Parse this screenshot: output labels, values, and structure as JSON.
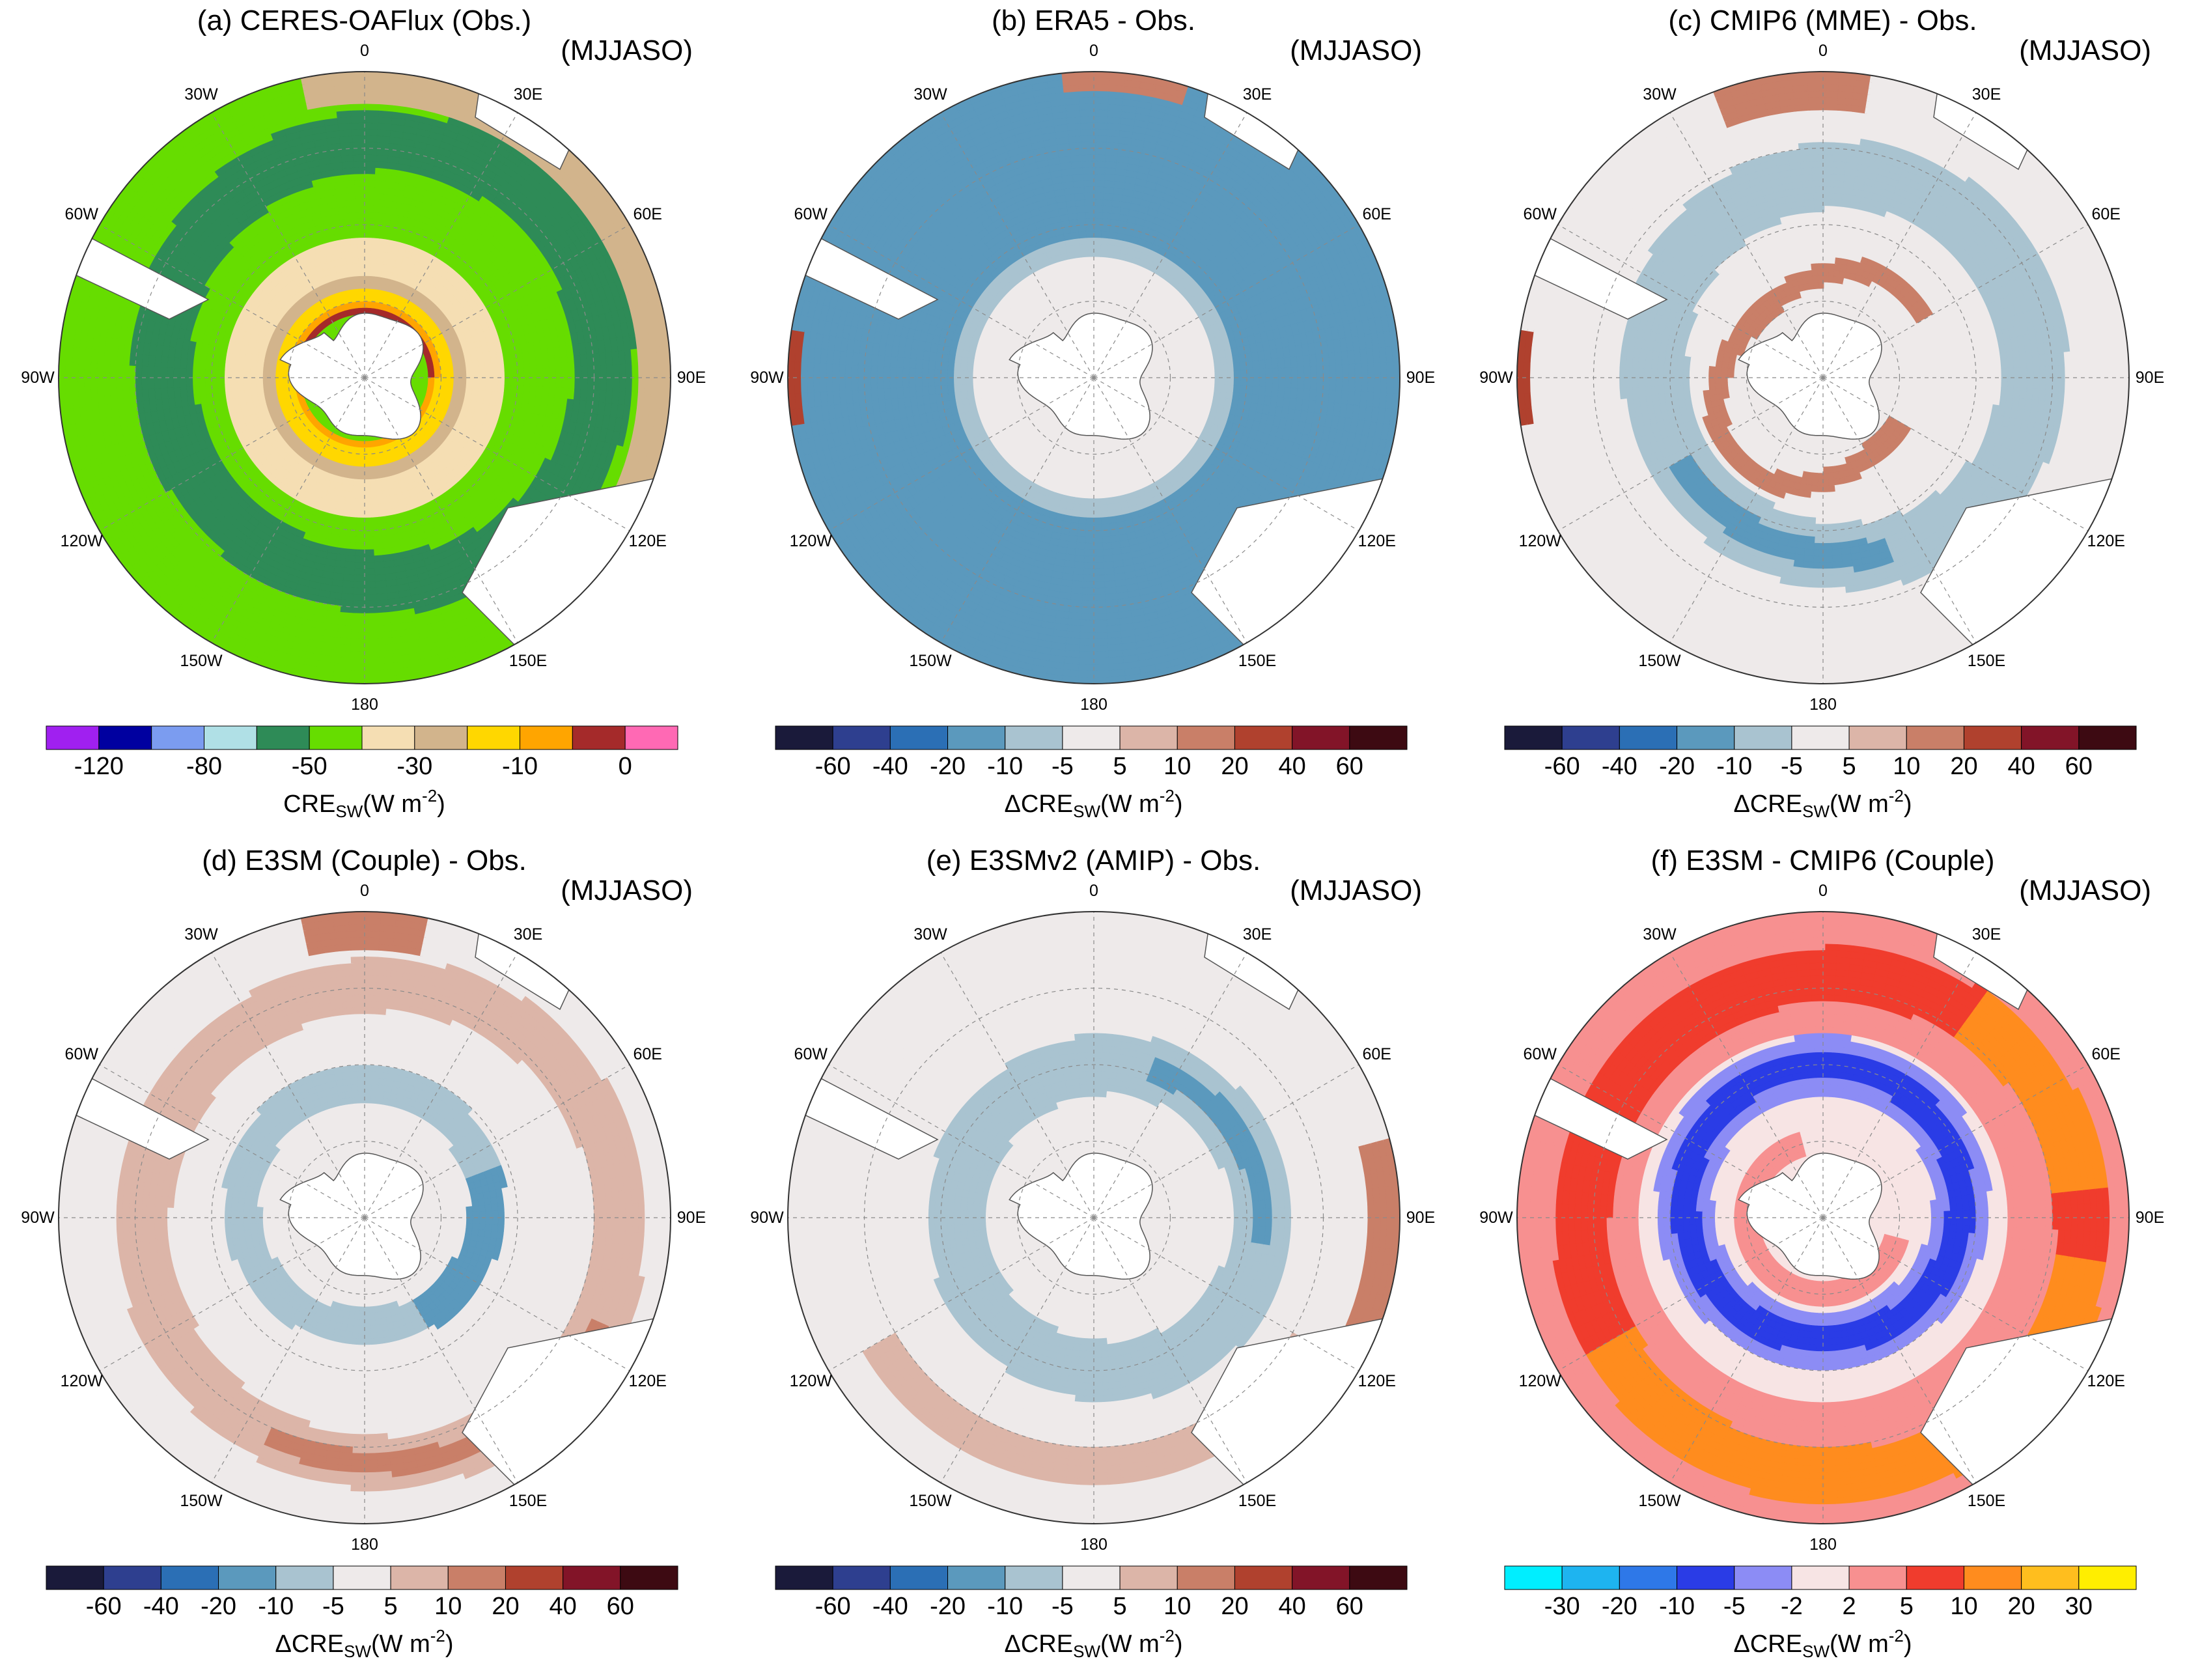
{
  "figure": {
    "season": "(MJJASO)",
    "lon_labels": [
      "0",
      "30E",
      "60E",
      "90E",
      "120E",
      "150E",
      "180",
      "150W",
      "120W",
      "90W",
      "60W",
      "30W"
    ]
  },
  "panels": [
    {
      "title": "(a) CERES-OAFlux (Obs.)",
      "colorbar": {
        "label_main": "CRE",
        "label_sub": "SW",
        "label_units_pre": "(W m",
        "label_units_sup": "-2",
        "label_units_post": ")",
        "ticks": [
          "-120",
          "-80",
          "-50",
          "-30",
          "-10",
          "0"
        ],
        "tick_bounds": [
          1,
          3,
          5,
          7,
          9,
          11
        ],
        "colors": [
          "#a020f0",
          "#0000a0",
          "#7b9cf0",
          "#b0e0e6",
          "#2e8b57",
          "#66dd00",
          "#f5deb3",
          "#d2b48c",
          "#ffd700",
          "#ffa500",
          "#a52a2a",
          "#ff69b4"
        ]
      },
      "field": "abs"
    },
    {
      "title": "(b) ERA5 - Obs.",
      "colorbar": {
        "label_main": "ΔCRE",
        "label_sub": "SW",
        "label_units_pre": "(W m",
        "label_units_sup": "-2",
        "label_units_post": ")",
        "ticks": [
          "-60",
          "-40",
          "-20",
          "-10",
          "-5",
          "5",
          "10",
          "20",
          "40",
          "60"
        ],
        "tick_bounds": [
          1,
          2,
          3,
          4,
          5,
          6,
          7,
          8,
          9,
          10
        ],
        "colors": [
          "#1a1a3a",
          "#2e3f8f",
          "#2b6fb5",
          "#5b99bd",
          "#a9c3d0",
          "#eeeaea",
          "#dcb5a8",
          "#c97f68",
          "#b0412e",
          "#821428",
          "#3d0a12"
        ]
      },
      "field": "era5"
    },
    {
      "title": "(c) CMIP6 (MME) - Obs.",
      "colorbar": {
        "label_main": "ΔCRE",
        "label_sub": "SW",
        "label_units_pre": "(W m",
        "label_units_sup": "-2",
        "label_units_post": ")",
        "ticks": [
          "-60",
          "-40",
          "-20",
          "-10",
          "-5",
          "5",
          "10",
          "20",
          "40",
          "60"
        ],
        "tick_bounds": [
          1,
          2,
          3,
          4,
          5,
          6,
          7,
          8,
          9,
          10
        ],
        "colors": [
          "#1a1a3a",
          "#2e3f8f",
          "#2b6fb5",
          "#5b99bd",
          "#a9c3d0",
          "#eeeaea",
          "#dcb5a8",
          "#c97f68",
          "#b0412e",
          "#821428",
          "#3d0a12"
        ]
      },
      "field": "cmip"
    },
    {
      "title": "(d) E3SM (Couple) - Obs.",
      "colorbar": {
        "label_main": "ΔCRE",
        "label_sub": "SW",
        "label_units_pre": "(W m",
        "label_units_sup": "-2",
        "label_units_post": ")",
        "ticks": [
          "-60",
          "-40",
          "-20",
          "-10",
          "-5",
          "5",
          "10",
          "20",
          "40",
          "60"
        ],
        "tick_bounds": [
          1,
          2,
          3,
          4,
          5,
          6,
          7,
          8,
          9,
          10
        ],
        "colors": [
          "#1a1a3a",
          "#2e3f8f",
          "#2b6fb5",
          "#5b99bd",
          "#a9c3d0",
          "#eeeaea",
          "#dcb5a8",
          "#c97f68",
          "#b0412e",
          "#821428",
          "#3d0a12"
        ]
      },
      "field": "e3sm"
    },
    {
      "title": "(e) E3SMv2 (AMIP) - Obs.",
      "colorbar": {
        "label_main": "ΔCRE",
        "label_sub": "SW",
        "label_units_pre": "(W m",
        "label_units_sup": "-2",
        "label_units_post": ")",
        "ticks": [
          "-60",
          "-40",
          "-20",
          "-10",
          "-5",
          "5",
          "10",
          "20",
          "40",
          "60"
        ],
        "tick_bounds": [
          1,
          2,
          3,
          4,
          5,
          6,
          7,
          8,
          9,
          10
        ],
        "colors": [
          "#1a1a3a",
          "#2e3f8f",
          "#2b6fb5",
          "#5b99bd",
          "#a9c3d0",
          "#eeeaea",
          "#dcb5a8",
          "#c97f68",
          "#b0412e",
          "#821428",
          "#3d0a12"
        ]
      },
      "field": "amip"
    },
    {
      "title": "(f) E3SM - CMIP6 (Couple)",
      "colorbar": {
        "label_main": "ΔCRE",
        "label_sub": "SW",
        "label_units_pre": "(W m",
        "label_units_sup": "-2",
        "label_units_post": ")",
        "ticks": [
          "-30",
          "-20",
          "-10",
          "-5",
          "-2",
          "2",
          "5",
          "10",
          "20",
          "30"
        ],
        "tick_bounds": [
          1,
          2,
          3,
          4,
          5,
          6,
          7,
          8,
          9,
          10
        ],
        "colors": [
          "#00eeff",
          "#1eb4f0",
          "#2e78e8",
          "#2a3ce6",
          "#8c8cf5",
          "#f7e4e4",
          "#f79090",
          "#f03c2d",
          "#ff8c1e",
          "#ffbe1e",
          "#ffee00"
        ]
      },
      "field": "diff"
    }
  ]
}
